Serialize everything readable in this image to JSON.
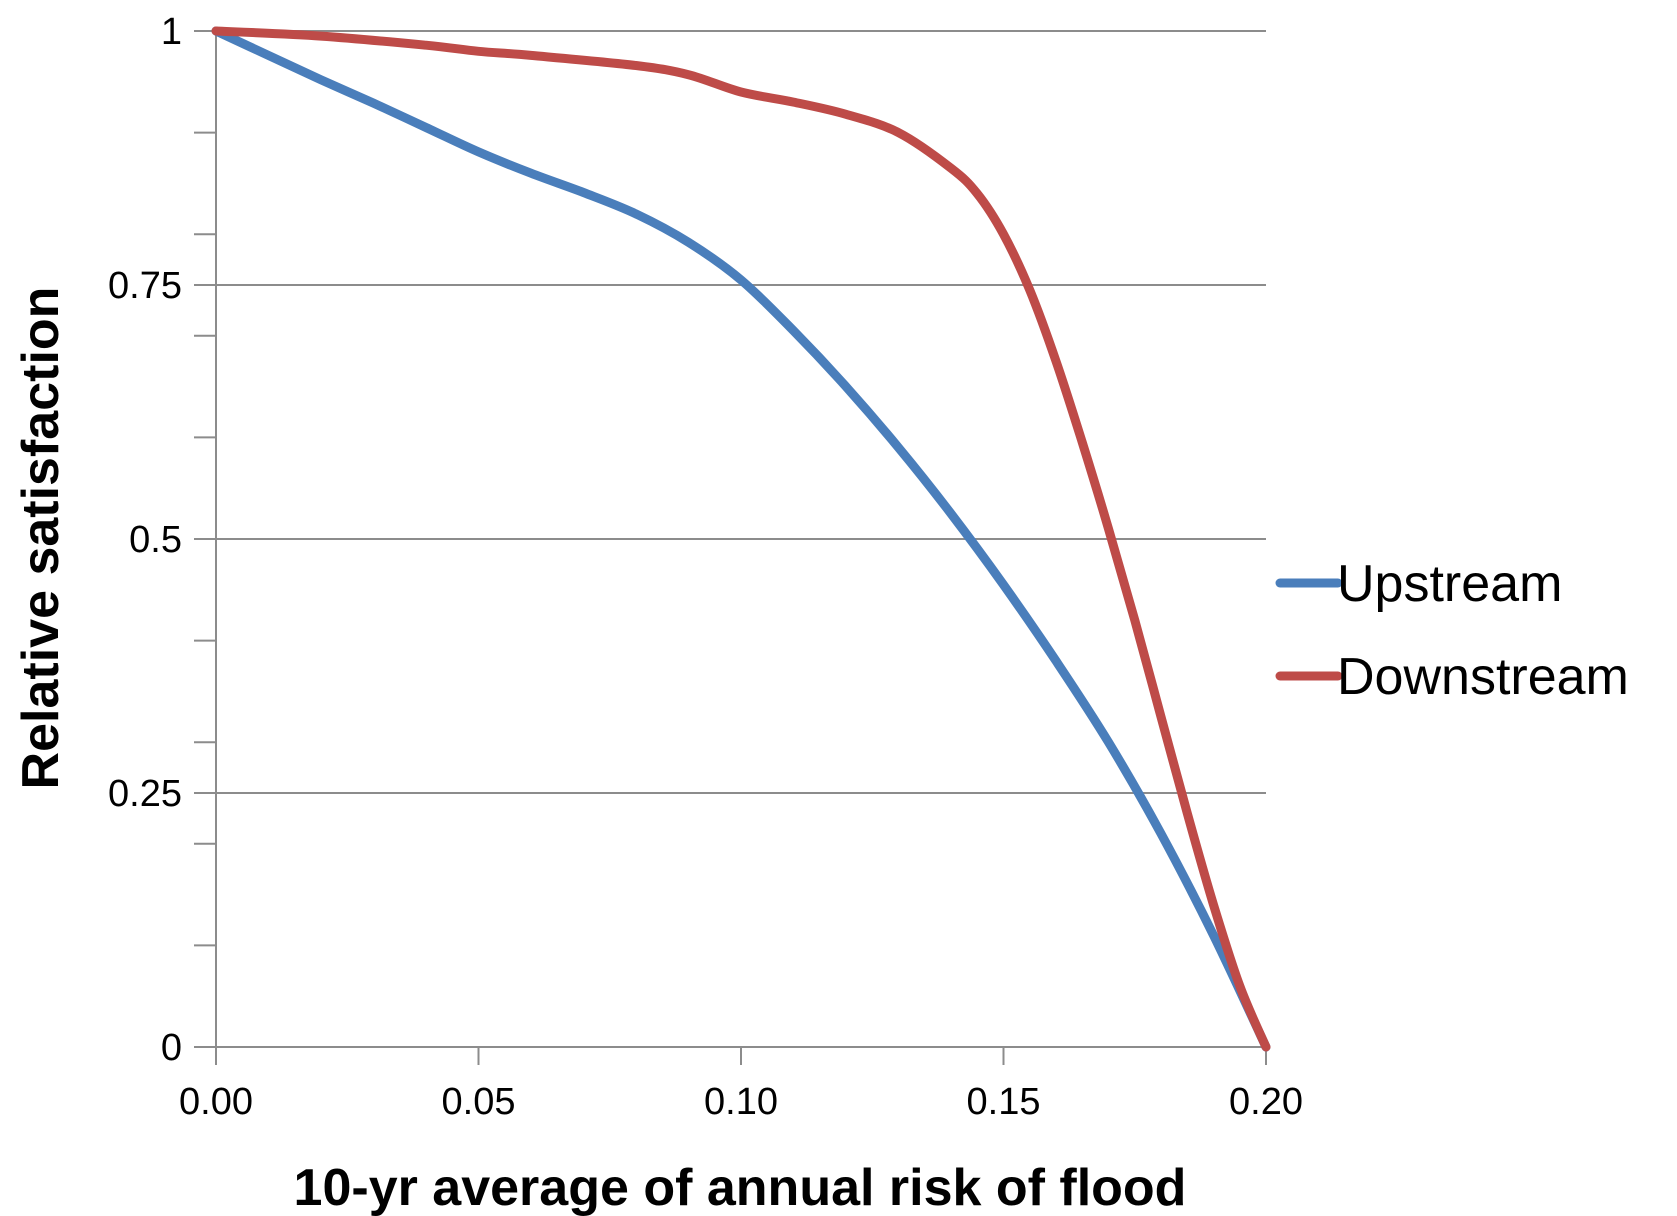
{
  "chart_data": {
    "type": "line",
    "title": "",
    "xlabel": "10-yr average of annual risk of flood",
    "ylabel": "Relative satisfaction",
    "xlim": [
      0,
      0.2
    ],
    "ylim": [
      0,
      1
    ],
    "x_ticks": [
      0,
      0.05,
      0.1,
      0.15,
      0.2
    ],
    "x_tick_labels": [
      "0.00",
      "0.05",
      "0.10",
      "0.15",
      "0.20"
    ],
    "y_ticks": [
      0,
      0.25,
      0.5,
      0.75,
      1
    ],
    "y_tick_labels": [
      "0",
      "0.25",
      "0.5",
      "0.75",
      "1"
    ],
    "y_minor_step": 0.1,
    "grid": true,
    "legend_position": "right",
    "series": [
      {
        "name": "Upstream",
        "color": "#4A7EBB",
        "x": [
          0,
          0.01,
          0.02,
          0.03,
          0.04,
          0.05,
          0.06,
          0.07,
          0.08,
          0.09,
          0.1,
          0.11,
          0.12,
          0.13,
          0.14,
          0.15,
          0.16,
          0.17,
          0.18,
          0.19,
          0.2
        ],
        "y": [
          1.0,
          0.976,
          0.952,
          0.929,
          0.905,
          0.881,
          0.86,
          0.841,
          0.82,
          0.792,
          0.755,
          0.705,
          0.65,
          0.59,
          0.525,
          0.455,
          0.38,
          0.3,
          0.21,
          0.11,
          0.0
        ]
      },
      {
        "name": "Downstream",
        "color": "#BE4B48",
        "x": [
          0,
          0.02,
          0.04,
          0.05,
          0.06,
          0.08,
          0.09,
          0.1,
          0.11,
          0.12,
          0.13,
          0.14,
          0.145,
          0.15,
          0.155,
          0.16,
          0.165,
          0.17,
          0.175,
          0.18,
          0.185,
          0.19,
          0.195,
          0.2
        ],
        "y": [
          1.0,
          0.995,
          0.986,
          0.98,
          0.976,
          0.966,
          0.957,
          0.94,
          0.93,
          0.918,
          0.9,
          0.865,
          0.84,
          0.8,
          0.745,
          0.675,
          0.595,
          0.51,
          0.42,
          0.325,
          0.23,
          0.14,
          0.06,
          0.0
        ]
      }
    ]
  }
}
